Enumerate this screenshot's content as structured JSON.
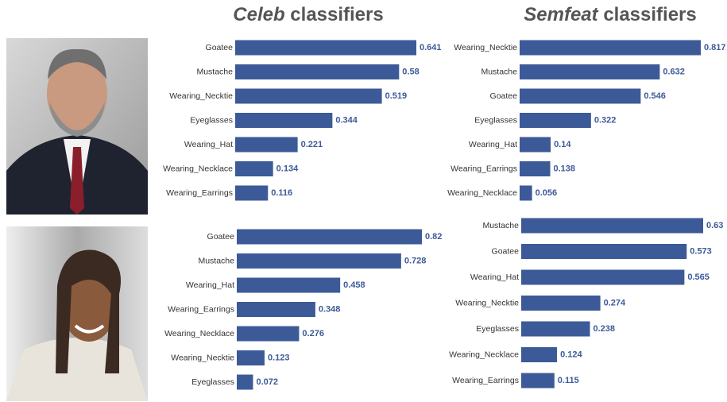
{
  "headers": [
    {
      "emphasis": "Celeb",
      "rest": "classifiers"
    },
    {
      "emphasis": "Semfeat",
      "rest": "classifiers"
    }
  ],
  "chart_data": [
    {
      "type": "bar",
      "orientation": "horizontal",
      "color": "#3d5a98",
      "categories": [
        "Goatee",
        "Mustache",
        "Wearing_Necktie",
        "Eyeglasses",
        "Wearing_Hat",
        "Wearing_Necklace",
        "Wearing_Earrings"
      ],
      "values": [
        0.641,
        0.58,
        0.519,
        0.344,
        0.221,
        0.134,
        0.116
      ]
    },
    {
      "type": "bar",
      "orientation": "horizontal",
      "color": "#3d5a98",
      "categories": [
        "Wearing_Necktie",
        "Mustache",
        "Goatee",
        "Eyeglasses",
        "Wearing_Hat",
        "Wearing_Earrings",
        "Wearing_Necklace"
      ],
      "values": [
        0.817,
        0.632,
        0.546,
        0.322,
        0.14,
        0.138,
        0.056
      ]
    },
    {
      "type": "bar",
      "orientation": "horizontal",
      "color": "#3d5a98",
      "categories": [
        "Goatee",
        "Mustache",
        "Wearing_Hat",
        "Wearing_Earrings",
        "Wearing_Necklace",
        "Wearing_Necktie",
        "Eyeglasses"
      ],
      "values": [
        0.82,
        0.728,
        0.458,
        0.348,
        0.276,
        0.123,
        0.072
      ]
    },
    {
      "type": "bar",
      "orientation": "horizontal",
      "color": "#3d5a98",
      "categories": [
        "Mustache",
        "Goatee",
        "Wearing_Hat",
        "Wearing_Necktie",
        "Eyeglasses",
        "Wearing_Necklace",
        "Wearing_Earrings"
      ],
      "values": [
        0.63,
        0.573,
        0.565,
        0.274,
        0.238,
        0.124,
        0.115
      ]
    }
  ]
}
